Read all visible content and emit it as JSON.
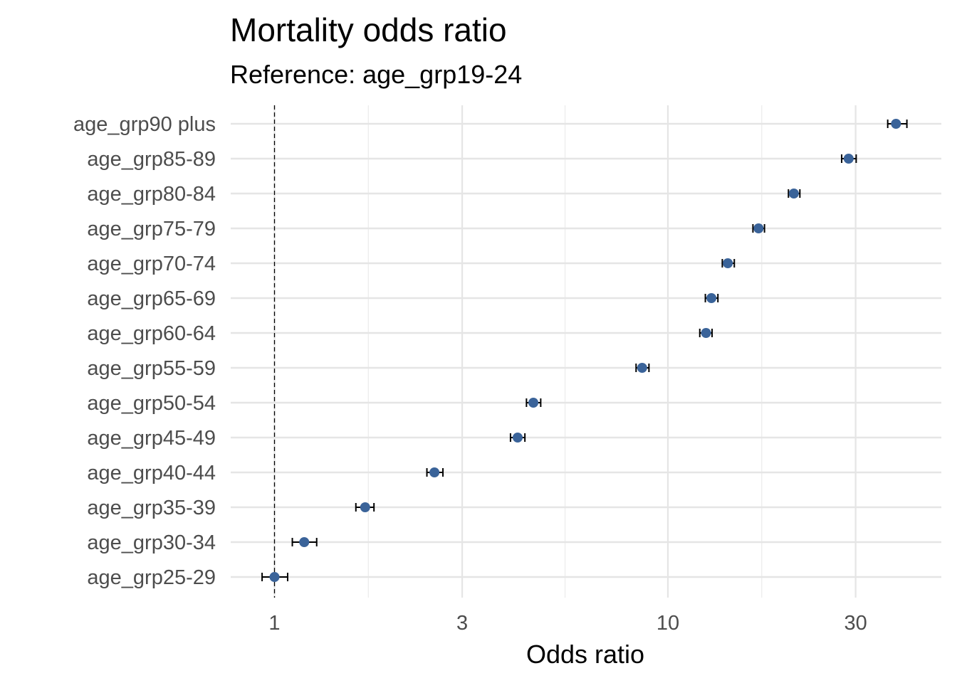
{
  "chart_data": {
    "type": "scatter",
    "title": "Mortality odds ratio",
    "subtitle": "Reference: age_grp19-24",
    "xlabel": "Odds ratio",
    "ylabel": "",
    "x_scale": "log",
    "xlim": [
      0.92,
      45
    ],
    "x_ticks": [
      1,
      3,
      10,
      30
    ],
    "x_minor_ticks": [
      1.7320508,
      5.4772256,
      17.3205081
    ],
    "grid": true,
    "reference_line": 1,
    "point_color": "#3a6399",
    "errorbar_color": "#000000",
    "categories": [
      "age_grp25-29",
      "age_grp30-34",
      "age_grp35-39",
      "age_grp40-44",
      "age_grp45-49",
      "age_grp50-54",
      "age_grp55-59",
      "age_grp60-64",
      "age_grp65-69",
      "age_grp70-74",
      "age_grp75-79",
      "age_grp80-84",
      "age_grp85-89",
      "age_grp90 plus"
    ],
    "series": [
      {
        "estimate": [
          1.0,
          1.19,
          1.7,
          2.55,
          4.15,
          4.55,
          8.6,
          12.5,
          12.9,
          14.2,
          17.0,
          20.9,
          28.8,
          38.0
        ],
        "lower": [
          0.93,
          1.11,
          1.61,
          2.44,
          3.98,
          4.37,
          8.3,
          12.05,
          12.45,
          13.75,
          16.45,
          20.25,
          27.65,
          36.2
        ],
        "upper": [
          1.08,
          1.28,
          1.79,
          2.68,
          4.33,
          4.75,
          8.95,
          12.95,
          13.4,
          14.75,
          17.6,
          21.65,
          30.1,
          40.5
        ]
      }
    ]
  }
}
